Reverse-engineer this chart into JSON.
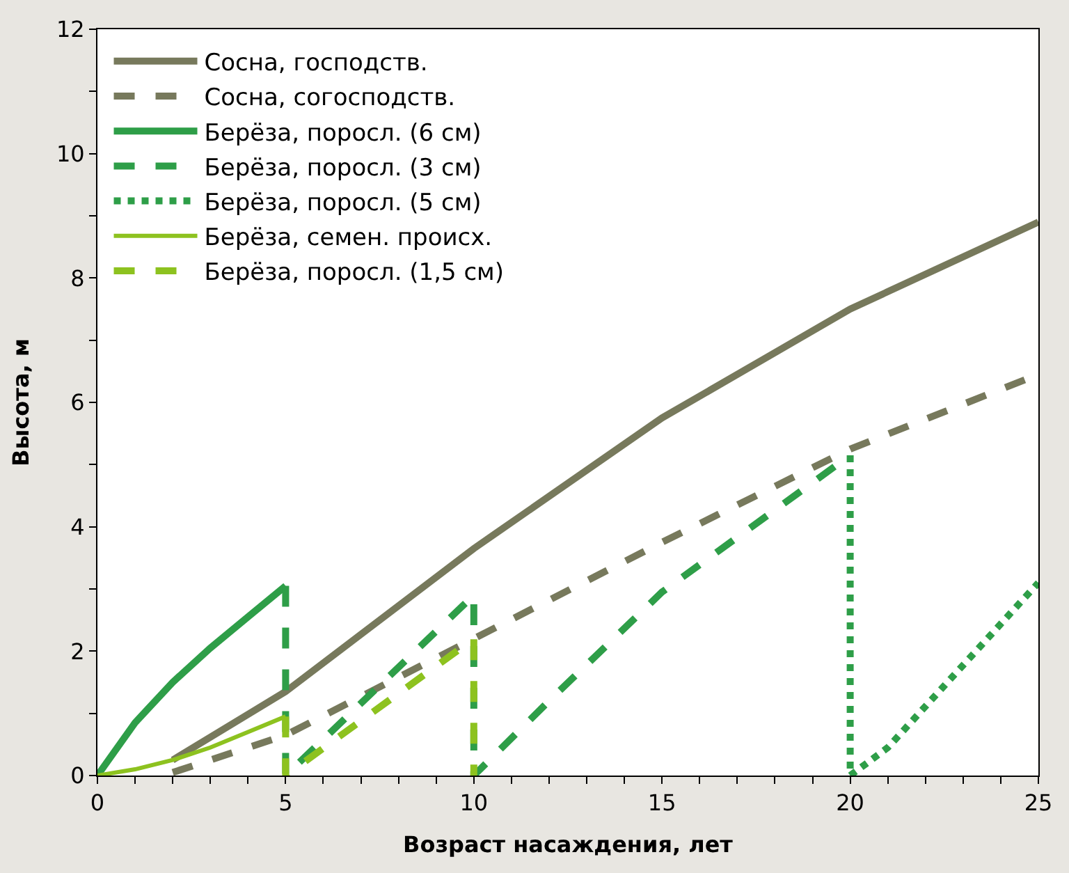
{
  "chart_data": {
    "type": "line",
    "xlabel": "Возраст насаждения, лет",
    "ylabel": "Высота, м",
    "xlim": [
      0,
      25
    ],
    "xticks": [
      0,
      {
        "value": 1,
        "label": null
      },
      {
        "value": 2,
        "label": null
      },
      {
        "value": 3,
        "label": null
      },
      {
        "value": 4,
        "label": null
      },
      5,
      {
        "value": 6,
        "label": null
      },
      {
        "value": 7,
        "label": null
      },
      {
        "value": 8,
        "label": null
      },
      {
        "value": 9,
        "label": null
      },
      10,
      {
        "value": 11,
        "label": null
      },
      {
        "value": 12,
        "label": null
      },
      {
        "value": 13,
        "label": null
      },
      {
        "value": 14,
        "label": null
      },
      15,
      {
        "value": 16,
        "label": null
      },
      {
        "value": 17,
        "label": null
      },
      {
        "value": 18,
        "label": null
      },
      {
        "value": 19,
        "label": null
      },
      20,
      {
        "value": 21,
        "label": null
      },
      {
        "value": 22,
        "label": null
      },
      {
        "value": 23,
        "label": null
      },
      {
        "value": 24,
        "label": null
      },
      25
    ],
    "ylim": [
      0,
      12
    ],
    "yticks": [
      0,
      {
        "value": 1,
        "label": null
      },
      2,
      {
        "value": 3,
        "label": null
      },
      4,
      {
        "value": 5,
        "label": null
      },
      6,
      {
        "value": 7,
        "label": null
      },
      8,
      {
        "value": 9,
        "label": null
      },
      10,
      {
        "value": 11,
        "label": null
      },
      12
    ],
    "legend": "top left",
    "marker": "none",
    "series": [
      {
        "name": "Сосна, господств.",
        "color": "#77795c",
        "line_style": "solid",
        "x": [
          2,
          5,
          10,
          15,
          20,
          25
        ],
        "values": [
          0.25,
          1.35,
          3.65,
          5.75,
          7.5,
          8.9
        ]
      },
      {
        "name": "Сосна, согосподств.",
        "color": "#77795c",
        "line_style": "dashed",
        "x": [
          2,
          5,
          10,
          15,
          20,
          25
        ],
        "values": [
          0.05,
          0.65,
          2.2,
          3.75,
          5.25,
          6.45
        ]
      },
      {
        "name": "Берёза, поросл. (6 см)",
        "color": "#2e9e48",
        "line_style": "solid",
        "x": [
          0,
          1,
          2,
          3,
          4,
          5
        ],
        "values": [
          0,
          0.85,
          1.5,
          2.05,
          2.55,
          3.05
        ]
      },
      {
        "name": "Берёза, поросл. (3 см)",
        "color": "#2e9e48",
        "line_style": "dashed",
        "x": [
          5,
          5,
          10,
          10,
          12,
          15,
          20
        ],
        "values": [
          3.05,
          0,
          2.9,
          0,
          1.2,
          2.95,
          5.15
        ]
      },
      {
        "name": "Берёза, поросл. (5 см)",
        "color": "#2e9e48",
        "line_style": "dotted",
        "x": [
          20,
          20,
          21,
          25
        ],
        "values": [
          5.15,
          0,
          0.45,
          3.1
        ]
      },
      {
        "name": "Берёза, семен. происх.",
        "color": "#8dc21f",
        "line_style": "solid",
        "x": [
          0,
          1,
          2,
          3,
          4,
          5
        ],
        "values": [
          0,
          0.1,
          0.25,
          0.45,
          0.7,
          0.95
        ]
      },
      {
        "name": "Берёза, поросл. (1,5 см)",
        "color": "#8dc21f",
        "line_style": "dashed",
        "x": [
          5,
          5,
          10,
          10
        ],
        "values": [
          0.95,
          0,
          2.2,
          0
        ]
      }
    ]
  }
}
